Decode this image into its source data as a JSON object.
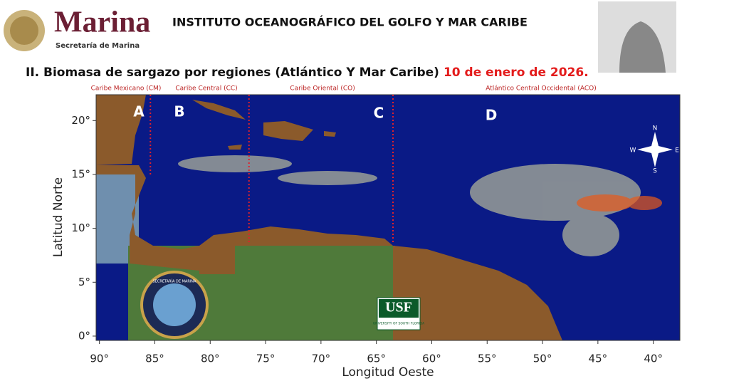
{
  "header": {
    "logo": "Marina",
    "logo_sub": "Secretaría de Marina",
    "institute": "INSTITUTO OCEANOGRÁFICO DEL GOLFO Y MAR CARIBE",
    "title": "II. Biomasa de sargazo por regiones (Atlántico Y Mar Caribe)",
    "date": "10 de enero de 2026."
  },
  "map": {
    "xlabel": "Longitud Oeste",
    "ylabel": "Latitud Norte",
    "xlim": [
      90.3,
      37.6
    ],
    "ylim": [
      -0.4,
      22.4
    ],
    "xticks": [
      {
        "value": 90,
        "label": "90°"
      },
      {
        "value": 85,
        "label": "85°"
      },
      {
        "value": 80,
        "label": "80°"
      },
      {
        "value": 75,
        "label": "75°"
      },
      {
        "value": 70,
        "label": "70°"
      },
      {
        "value": 65,
        "label": "65°"
      },
      {
        "value": 60,
        "label": "60°"
      },
      {
        "value": 55,
        "label": "55°"
      },
      {
        "value": 50,
        "label": "50°"
      },
      {
        "value": 45,
        "label": "45°"
      },
      {
        "value": 40,
        "label": "40°"
      }
    ],
    "yticks": [
      {
        "value": 0,
        "label": "0°"
      },
      {
        "value": 5,
        "label": "5°"
      },
      {
        "value": 10,
        "label": "10°"
      },
      {
        "value": 15,
        "label": "15°"
      },
      {
        "value": 20,
        "label": "20°"
      }
    ],
    "boundaries": [
      85.4,
      76.5,
      63.5
    ],
    "region_names": [
      "Caribe Mexicano (CM)",
      "Caribe Central (CC)",
      "Caribe Oriental (CO)",
      "Atlántico Central Occidental (ACO)"
    ],
    "region_letters": [
      "A",
      "B",
      "C",
      "D"
    ],
    "compass": [
      "N",
      "E",
      "S",
      "W"
    ],
    "usf": "USF",
    "usf_sub": "UNIVERSITY OF SOUTH FLORIDA",
    "seal": "SECRETARÍA DE MARINA"
  }
}
